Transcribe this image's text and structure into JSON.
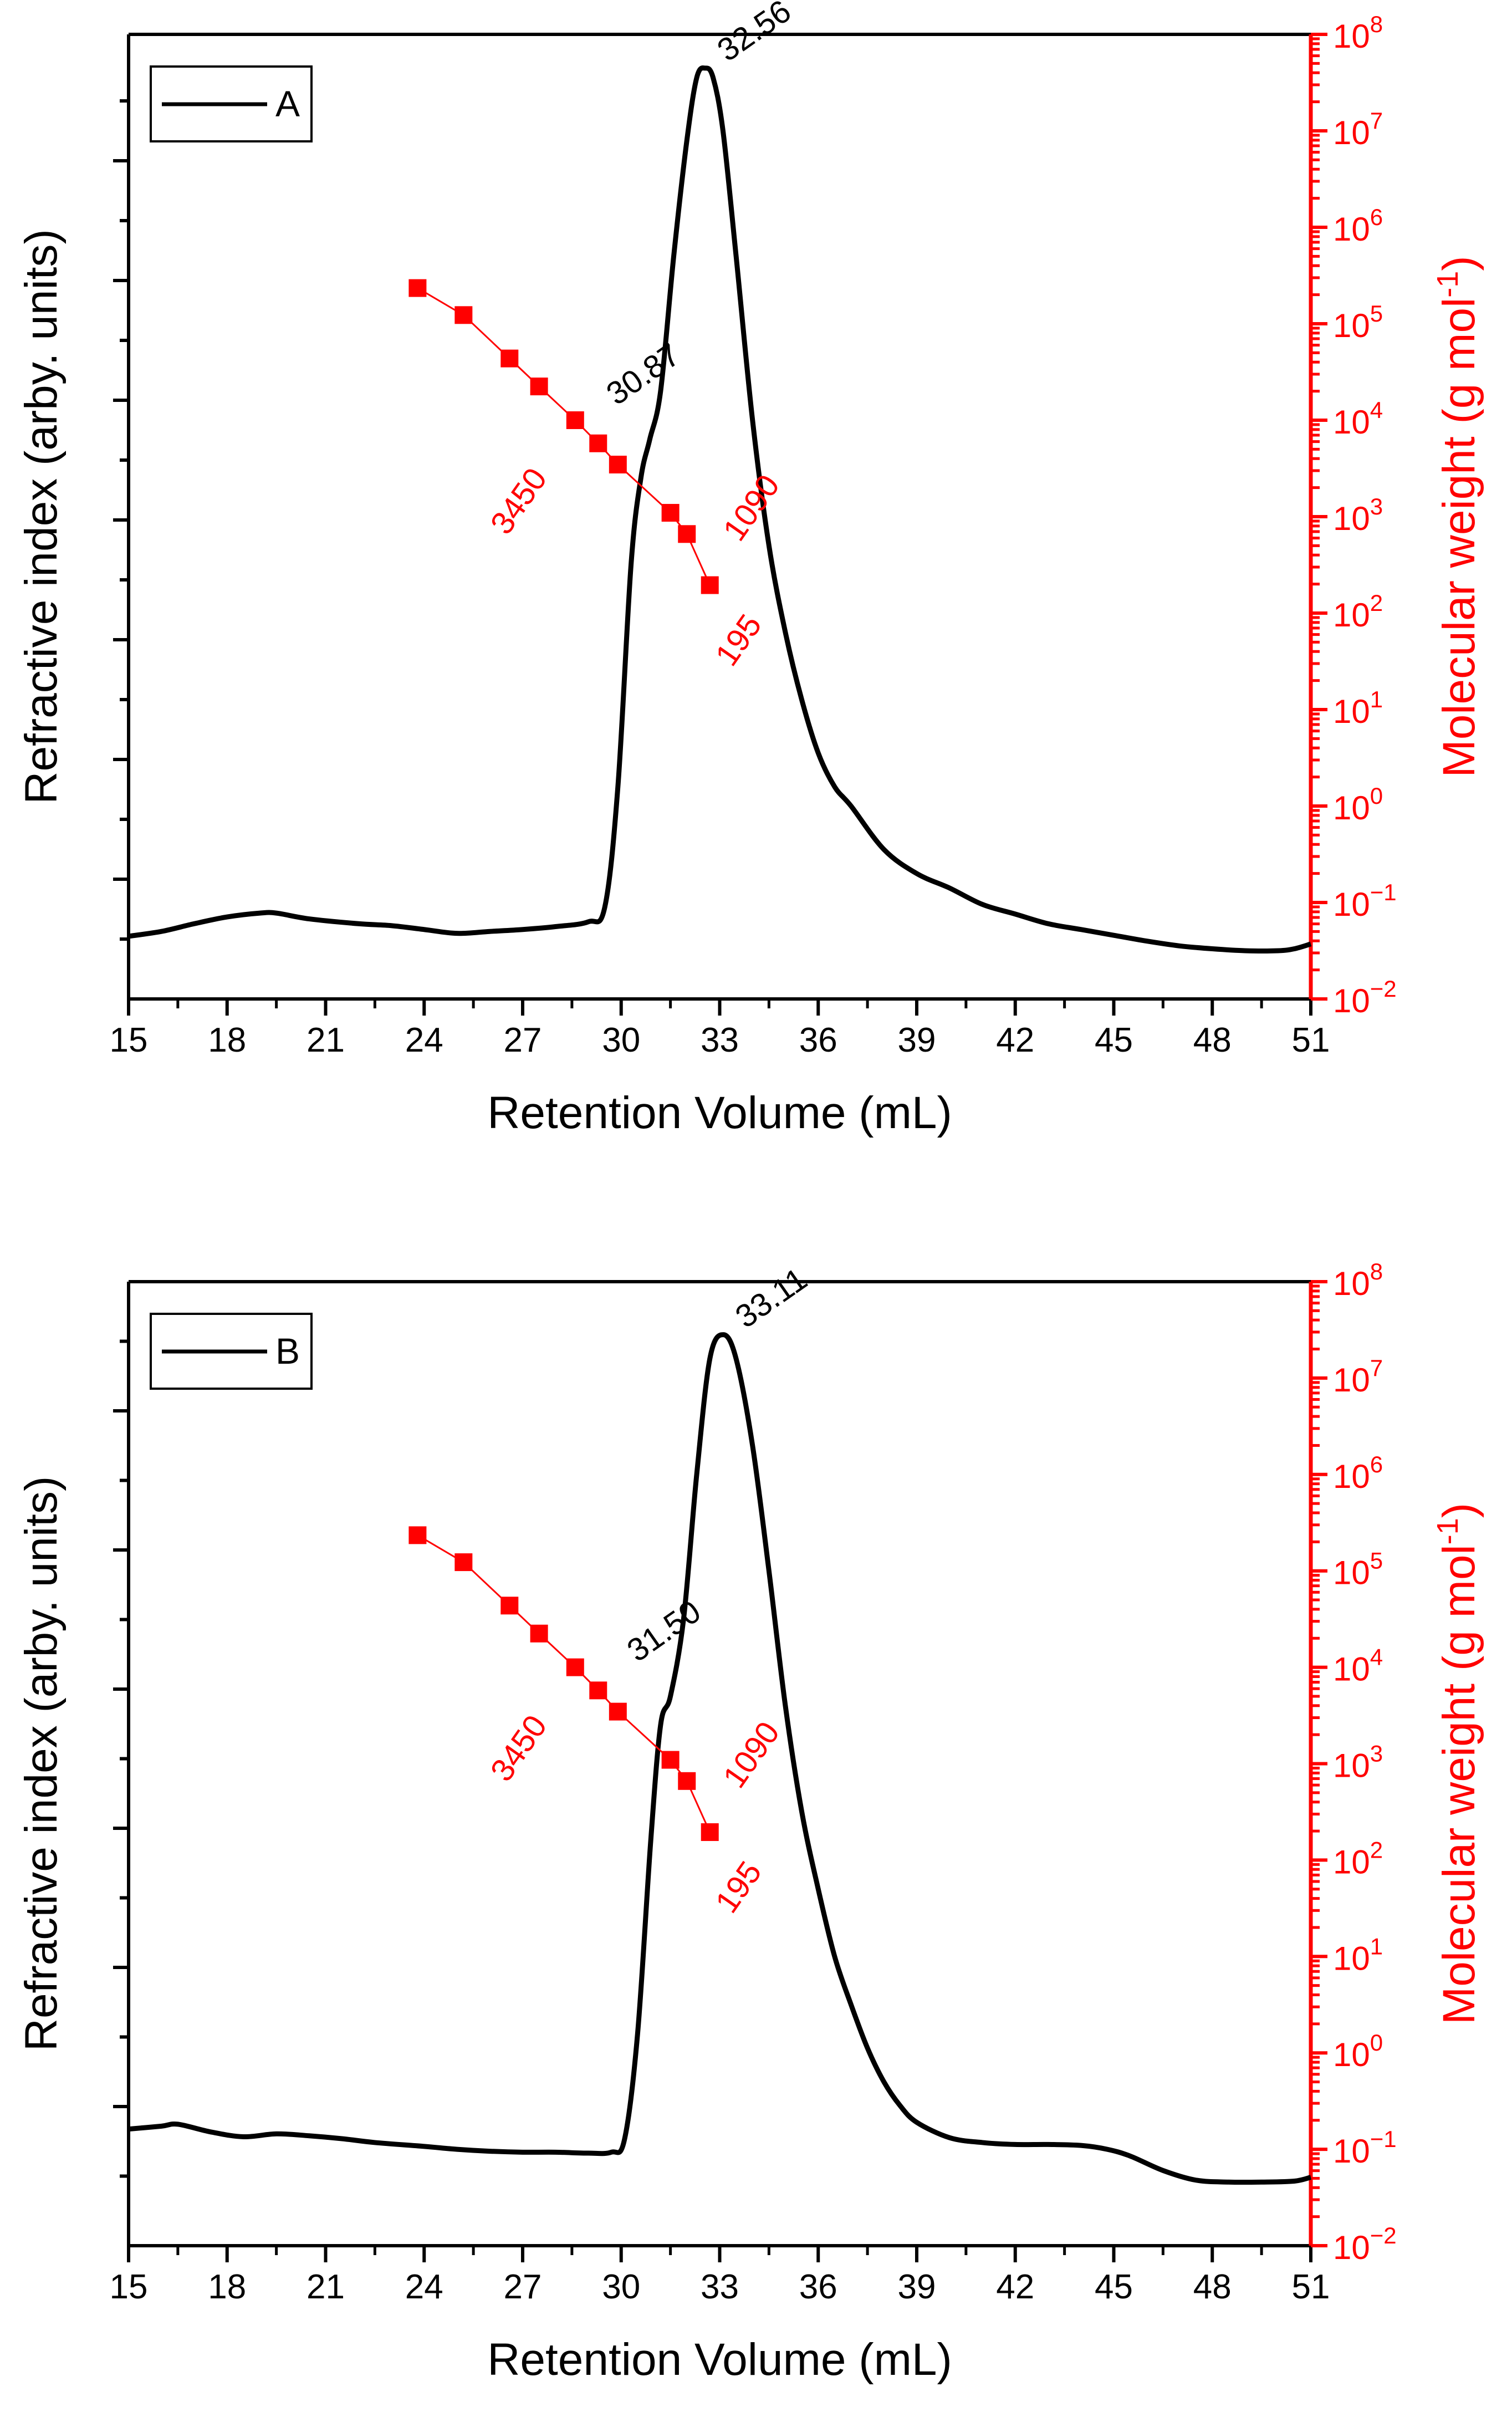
{
  "chart_data": [
    {
      "type": "line",
      "panel": "A",
      "legend": {
        "label": "A",
        "placement": "top-left"
      },
      "xlabel": "Retention Volume (mL)",
      "ylabel_left": "Refractive index (arby. units)",
      "ylabel_right": "Molecular weight (g mol",
      "ylabel_right_sup": "-1",
      "ylabel_right_end": ")",
      "xlim": [
        15,
        51
      ],
      "x_ticks": [
        "15",
        "18",
        "21",
        "24",
        "27",
        "30",
        "33",
        "36",
        "39",
        "42",
        "45",
        "48",
        "51"
      ],
      "y_right_range_log10": [
        -2,
        8
      ],
      "y_right_ticks": [
        {
          "base": "10",
          "exp": "8"
        },
        {
          "base": "10",
          "exp": "7"
        },
        {
          "base": "10",
          "exp": "6"
        },
        {
          "base": "10",
          "exp": "5"
        },
        {
          "base": "10",
          "exp": "4"
        },
        {
          "base": "10",
          "exp": "3"
        },
        {
          "base": "10",
          "exp": "2"
        },
        {
          "base": "10",
          "exp": "1"
        },
        {
          "base": "10",
          "exp": "0"
        },
        {
          "base": "10",
          "exp": "−1"
        },
        {
          "base": "10",
          "exp": "−2"
        }
      ],
      "ri_trace": {
        "name": "Refractive index",
        "ylim": [
          0,
          1
        ],
        "points": [
          [
            15,
            0.065
          ],
          [
            16,
            0.07
          ],
          [
            17,
            0.078
          ],
          [
            18,
            0.085
          ],
          [
            19,
            0.089
          ],
          [
            19.5,
            0.089
          ],
          [
            20.5,
            0.083
          ],
          [
            22,
            0.078
          ],
          [
            23,
            0.076
          ],
          [
            24,
            0.072
          ],
          [
            25,
            0.068
          ],
          [
            26,
            0.07
          ],
          [
            27,
            0.072
          ],
          [
            28,
            0.075
          ],
          [
            29,
            0.08
          ],
          [
            29.5,
            0.095
          ],
          [
            29.9,
            0.22
          ],
          [
            30.3,
            0.45
          ],
          [
            30.6,
            0.54
          ],
          [
            30.87,
            0.58
          ],
          [
            31.2,
            0.63
          ],
          [
            31.6,
            0.77
          ],
          [
            32.0,
            0.89
          ],
          [
            32.3,
            0.955
          ],
          [
            32.56,
            0.965
          ],
          [
            32.8,
            0.955
          ],
          [
            33.1,
            0.9
          ],
          [
            33.5,
            0.77
          ],
          [
            34.0,
            0.6
          ],
          [
            34.5,
            0.47
          ],
          [
            35.0,
            0.38
          ],
          [
            35.5,
            0.31
          ],
          [
            36.0,
            0.255
          ],
          [
            36.5,
            0.22
          ],
          [
            37,
            0.2
          ],
          [
            38,
            0.155
          ],
          [
            39,
            0.13
          ],
          [
            40,
            0.115
          ],
          [
            41,
            0.098
          ],
          [
            42,
            0.088
          ],
          [
            43,
            0.078
          ],
          [
            44,
            0.072
          ],
          [
            45,
            0.066
          ],
          [
            46,
            0.06
          ],
          [
            47,
            0.055
          ],
          [
            48,
            0.052
          ],
          [
            49,
            0.05
          ],
          [
            50,
            0.05
          ],
          [
            50.5,
            0.052
          ],
          [
            51,
            0.057
          ]
        ]
      },
      "calibration": {
        "name": "Molecular weight standards",
        "x": [
          23.8,
          25.2,
          26.6,
          27.5,
          28.6,
          29.3,
          29.9,
          31.5,
          32.0,
          32.7
        ],
        "log_mw": [
          5.37,
          5.09,
          4.64,
          4.35,
          4.0,
          3.76,
          3.54,
          3.04,
          2.82,
          2.29
        ]
      },
      "annotations": {
        "ri": [
          {
            "text": "32.56",
            "x": 32.56
          },
          {
            "text": "30.87",
            "x": 30.87
          }
        ],
        "mw": [
          {
            "text": "3450",
            "x": 29.9
          },
          {
            "text": "1090",
            "x": 31.5
          },
          {
            "text": "195",
            "x": 32.7
          }
        ]
      }
    },
    {
      "type": "line",
      "panel": "B",
      "legend": {
        "label": "B",
        "placement": "top-left"
      },
      "xlabel": "Retention Volume (mL)",
      "ylabel_left": "Refractive index (arby. units)",
      "ylabel_right": "Molecular weight (g mol",
      "ylabel_right_sup": "-1",
      "ylabel_right_end": ")",
      "xlim": [
        15,
        51
      ],
      "x_ticks": [
        "15",
        "18",
        "21",
        "24",
        "27",
        "30",
        "33",
        "36",
        "39",
        "42",
        "45",
        "48",
        "51"
      ],
      "y_right_range_log10": [
        -2,
        8
      ],
      "y_right_ticks": [
        {
          "base": "10",
          "exp": "8"
        },
        {
          "base": "10",
          "exp": "7"
        },
        {
          "base": "10",
          "exp": "6"
        },
        {
          "base": "10",
          "exp": "5"
        },
        {
          "base": "10",
          "exp": "4"
        },
        {
          "base": "10",
          "exp": "3"
        },
        {
          "base": "10",
          "exp": "2"
        },
        {
          "base": "10",
          "exp": "1"
        },
        {
          "base": "10",
          "exp": "0"
        },
        {
          "base": "10",
          "exp": "−1"
        },
        {
          "base": "10",
          "exp": "−2"
        }
      ],
      "ri_trace": {
        "name": "Refractive index",
        "ylim": [
          0,
          1
        ],
        "points": [
          [
            15,
            0.121
          ],
          [
            16,
            0.124
          ],
          [
            16.5,
            0.126
          ],
          [
            17.5,
            0.118
          ],
          [
            18.5,
            0.113
          ],
          [
            19.5,
            0.116
          ],
          [
            20.5,
            0.114
          ],
          [
            21.5,
            0.111
          ],
          [
            22.5,
            0.107
          ],
          [
            24,
            0.103
          ],
          [
            25,
            0.1
          ],
          [
            26,
            0.098
          ],
          [
            27,
            0.097
          ],
          [
            28,
            0.097
          ],
          [
            29,
            0.096
          ],
          [
            29.7,
            0.097
          ],
          [
            30.1,
            0.11
          ],
          [
            30.5,
            0.22
          ],
          [
            30.9,
            0.42
          ],
          [
            31.2,
            0.54
          ],
          [
            31.5,
            0.57
          ],
          [
            31.9,
            0.65
          ],
          [
            32.3,
            0.8
          ],
          [
            32.7,
            0.92
          ],
          [
            33.11,
            0.945
          ],
          [
            33.5,
            0.92
          ],
          [
            34.0,
            0.83
          ],
          [
            34.5,
            0.7
          ],
          [
            35.0,
            0.56
          ],
          [
            35.5,
            0.45
          ],
          [
            36.0,
            0.37
          ],
          [
            36.5,
            0.3
          ],
          [
            37.0,
            0.25
          ],
          [
            37.5,
            0.205
          ],
          [
            38,
            0.17
          ],
          [
            38.5,
            0.145
          ],
          [
            39,
            0.128
          ],
          [
            40,
            0.112
          ],
          [
            41,
            0.107
          ],
          [
            42,
            0.105
          ],
          [
            43,
            0.105
          ],
          [
            44,
            0.104
          ],
          [
            44.8,
            0.1
          ],
          [
            45.5,
            0.093
          ],
          [
            46.5,
            0.078
          ],
          [
            47.5,
            0.068
          ],
          [
            48.5,
            0.066
          ],
          [
            49.5,
            0.066
          ],
          [
            50.5,
            0.067
          ],
          [
            51,
            0.071
          ]
        ]
      },
      "calibration": {
        "name": "Molecular weight standards",
        "x": [
          23.8,
          25.2,
          26.6,
          27.5,
          28.6,
          29.3,
          29.9,
          31.5,
          32.0,
          32.7
        ],
        "log_mw": [
          5.37,
          5.09,
          4.64,
          4.35,
          4.0,
          3.76,
          3.54,
          3.04,
          2.82,
          2.29
        ]
      },
      "annotations": {
        "ri": [
          {
            "text": "33.11",
            "x": 33.11
          },
          {
            "text": "31.50",
            "x": 31.5
          }
        ],
        "mw": [
          {
            "text": "3450",
            "x": 29.9
          },
          {
            "text": "1090",
            "x": 31.5
          },
          {
            "text": "195",
            "x": 32.7
          }
        ]
      }
    }
  ],
  "colors": {
    "primary": "#000000",
    "accent": "#ff0000",
    "background": "#ffffff"
  }
}
